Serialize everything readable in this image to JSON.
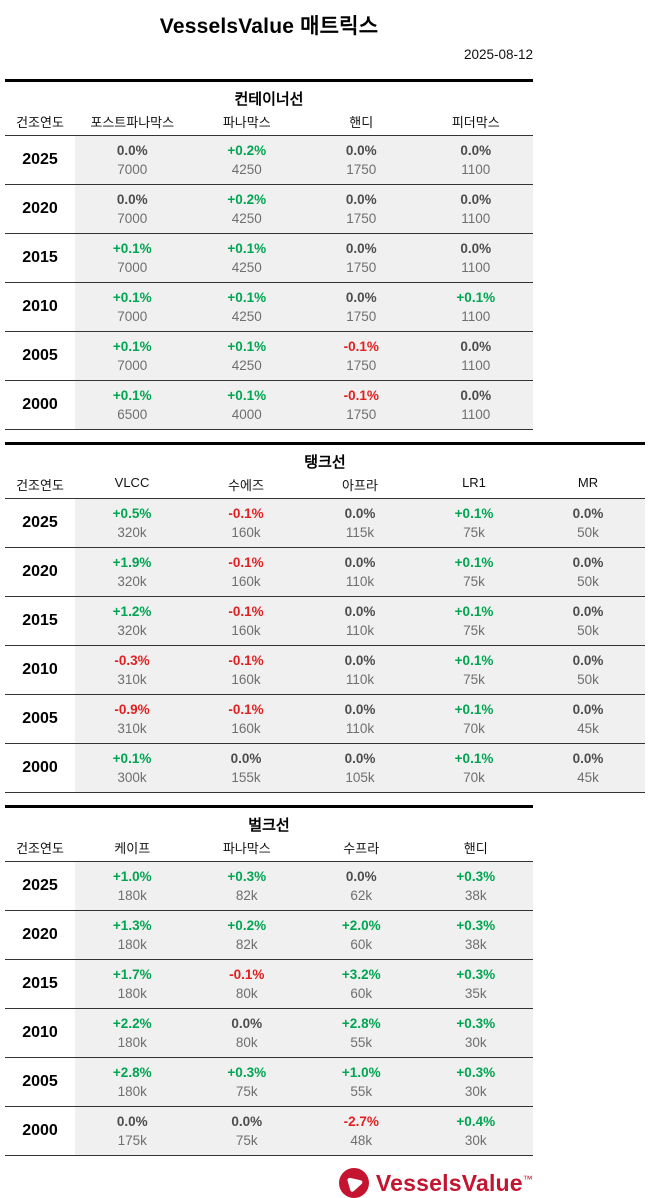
{
  "header": {
    "title": "VesselsValue 매트릭스",
    "date": "2025-08-12"
  },
  "colors": {
    "positive": "#00a551",
    "negative": "#e02020",
    "neutral": "#4d4d4d",
    "value_gray": "#6f6f6f",
    "brand_red": "#c41430",
    "cell_bg": "#f0f0f0"
  },
  "tables": [
    {
      "id": "container-ships",
      "name": "컨테이너선",
      "year_label": "건조연도",
      "wide": false,
      "columns": [
        "포스트파나막스",
        "파나막스",
        "핸디",
        "피더막스"
      ],
      "rows": [
        {
          "year": "2025",
          "cells": [
            {
              "pct": "0.0%",
              "value": "7000"
            },
            {
              "pct": "+0.2%",
              "value": "4250"
            },
            {
              "pct": "0.0%",
              "value": "1750"
            },
            {
              "pct": "0.0%",
              "value": "1100"
            }
          ]
        },
        {
          "year": "2020",
          "cells": [
            {
              "pct": "0.0%",
              "value": "7000"
            },
            {
              "pct": "+0.2%",
              "value": "4250"
            },
            {
              "pct": "0.0%",
              "value": "1750"
            },
            {
              "pct": "0.0%",
              "value": "1100"
            }
          ]
        },
        {
          "year": "2015",
          "cells": [
            {
              "pct": "+0.1%",
              "value": "7000"
            },
            {
              "pct": "+0.1%",
              "value": "4250"
            },
            {
              "pct": "0.0%",
              "value": "1750"
            },
            {
              "pct": "0.0%",
              "value": "1100"
            }
          ]
        },
        {
          "year": "2010",
          "cells": [
            {
              "pct": "+0.1%",
              "value": "7000"
            },
            {
              "pct": "+0.1%",
              "value": "4250"
            },
            {
              "pct": "0.0%",
              "value": "1750"
            },
            {
              "pct": "+0.1%",
              "value": "1100"
            }
          ]
        },
        {
          "year": "2005",
          "cells": [
            {
              "pct": "+0.1%",
              "value": "7000"
            },
            {
              "pct": "+0.1%",
              "value": "4250"
            },
            {
              "pct": "-0.1%",
              "value": "1750"
            },
            {
              "pct": "0.0%",
              "value": "1100"
            }
          ]
        },
        {
          "year": "2000",
          "cells": [
            {
              "pct": "+0.1%",
              "value": "6500"
            },
            {
              "pct": "+0.1%",
              "value": "4000"
            },
            {
              "pct": "-0.1%",
              "value": "1750"
            },
            {
              "pct": "0.0%",
              "value": "1100"
            }
          ]
        }
      ]
    },
    {
      "id": "tankers",
      "name": "탱크선",
      "year_label": "건조연도",
      "wide": true,
      "columns": [
        "VLCC",
        "수에즈",
        "아프라",
        "LR1",
        "MR"
      ],
      "rows": [
        {
          "year": "2025",
          "cells": [
            {
              "pct": "+0.5%",
              "value": "320k"
            },
            {
              "pct": "-0.1%",
              "value": "160k"
            },
            {
              "pct": "0.0%",
              "value": "115k"
            },
            {
              "pct": "+0.1%",
              "value": "75k"
            },
            {
              "pct": "0.0%",
              "value": "50k"
            }
          ]
        },
        {
          "year": "2020",
          "cells": [
            {
              "pct": "+1.9%",
              "value": "320k"
            },
            {
              "pct": "-0.1%",
              "value": "160k"
            },
            {
              "pct": "0.0%",
              "value": "110k"
            },
            {
              "pct": "+0.1%",
              "value": "75k"
            },
            {
              "pct": "0.0%",
              "value": "50k"
            }
          ]
        },
        {
          "year": "2015",
          "cells": [
            {
              "pct": "+1.2%",
              "value": "320k"
            },
            {
              "pct": "-0.1%",
              "value": "160k"
            },
            {
              "pct": "0.0%",
              "value": "110k"
            },
            {
              "pct": "+0.1%",
              "value": "75k"
            },
            {
              "pct": "0.0%",
              "value": "50k"
            }
          ]
        },
        {
          "year": "2010",
          "cells": [
            {
              "pct": "-0.3%",
              "value": "310k"
            },
            {
              "pct": "-0.1%",
              "value": "160k"
            },
            {
              "pct": "0.0%",
              "value": "110k"
            },
            {
              "pct": "+0.1%",
              "value": "75k"
            },
            {
              "pct": "0.0%",
              "value": "50k"
            }
          ]
        },
        {
          "year": "2005",
          "cells": [
            {
              "pct": "-0.9%",
              "value": "310k"
            },
            {
              "pct": "-0.1%",
              "value": "160k"
            },
            {
              "pct": "0.0%",
              "value": "110k"
            },
            {
              "pct": "+0.1%",
              "value": "70k"
            },
            {
              "pct": "0.0%",
              "value": "45k"
            }
          ]
        },
        {
          "year": "2000",
          "cells": [
            {
              "pct": "+0.1%",
              "value": "300k"
            },
            {
              "pct": "0.0%",
              "value": "155k"
            },
            {
              "pct": "0.0%",
              "value": "105k"
            },
            {
              "pct": "+0.1%",
              "value": "70k"
            },
            {
              "pct": "0.0%",
              "value": "45k"
            }
          ]
        }
      ]
    },
    {
      "id": "bulkers",
      "name": "벌크선",
      "year_label": "건조연도",
      "wide": false,
      "columns": [
        "케이프",
        "파나막스",
        "수프라",
        "핸디"
      ],
      "rows": [
        {
          "year": "2025",
          "cells": [
            {
              "pct": "+1.0%",
              "value": "180k"
            },
            {
              "pct": "+0.3%",
              "value": "82k"
            },
            {
              "pct": "0.0%",
              "value": "62k"
            },
            {
              "pct": "+0.3%",
              "value": "38k"
            }
          ]
        },
        {
          "year": "2020",
          "cells": [
            {
              "pct": "+1.3%",
              "value": "180k"
            },
            {
              "pct": "+0.2%",
              "value": "82k"
            },
            {
              "pct": "+2.0%",
              "value": "60k"
            },
            {
              "pct": "+0.3%",
              "value": "38k"
            }
          ]
        },
        {
          "year": "2015",
          "cells": [
            {
              "pct": "+1.7%",
              "value": "180k"
            },
            {
              "pct": "-0.1%",
              "value": "80k"
            },
            {
              "pct": "+3.2%",
              "value": "60k"
            },
            {
              "pct": "+0.3%",
              "value": "35k"
            }
          ]
        },
        {
          "year": "2010",
          "cells": [
            {
              "pct": "+2.2%",
              "value": "180k"
            },
            {
              "pct": "0.0%",
              "value": "80k"
            },
            {
              "pct": "+2.8%",
              "value": "55k"
            },
            {
              "pct": "+0.3%",
              "value": "30k"
            }
          ]
        },
        {
          "year": "2005",
          "cells": [
            {
              "pct": "+2.8%",
              "value": "180k"
            },
            {
              "pct": "+0.3%",
              "value": "75k"
            },
            {
              "pct": "+1.0%",
              "value": "55k"
            },
            {
              "pct": "+0.3%",
              "value": "30k"
            }
          ]
        },
        {
          "year": "2000",
          "cells": [
            {
              "pct": "0.0%",
              "value": "175k"
            },
            {
              "pct": "0.0%",
              "value": "75k"
            },
            {
              "pct": "-2.7%",
              "value": "48k"
            },
            {
              "pct": "+0.4%",
              "value": "30k"
            }
          ]
        }
      ]
    }
  ],
  "footer": {
    "brand": "VesselsValue",
    "tm": "™"
  }
}
